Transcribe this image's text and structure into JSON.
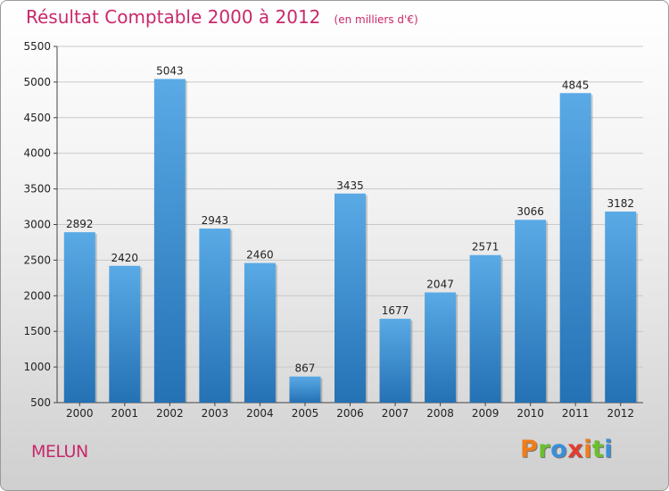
{
  "header": {
    "title": "Résultat Comptable 2000 à 2012",
    "subtitle": "(en milliers d'€)"
  },
  "footer": {
    "city": "MELUN",
    "brand": "Proxiti"
  },
  "colors": {
    "title": "#c8286a",
    "bar_light": "#5aaae6",
    "bar_dark": "#2471b4",
    "brand_letters": [
      "#ef7d1a",
      "#6abf2e",
      "#3a8fd9",
      "#e23d2f",
      "#ef7d1a",
      "#6abf2e",
      "#3a8fd9"
    ]
  },
  "chart_data": {
    "type": "bar",
    "title": "Résultat Comptable 2000 à 2012",
    "subtitle": "(en milliers d'€)",
    "xlabel": "",
    "ylabel": "",
    "categories": [
      "2000",
      "2001",
      "2002",
      "2003",
      "2004",
      "2005",
      "2006",
      "2007",
      "2008",
      "2009",
      "2010",
      "2011",
      "2012"
    ],
    "values": [
      2892,
      2420,
      5043,
      2943,
      2460,
      867,
      3435,
      1677,
      2047,
      2571,
      3066,
      4845,
      3182
    ],
    "data_labels": [
      "2892",
      "2420",
      "5043",
      "2943",
      "2460",
      "867",
      "3435",
      "1677",
      "2047",
      "2571",
      "3066",
      "4845",
      "3182"
    ],
    "ylim": [
      500,
      5500
    ],
    "yticks": [
      500,
      1000,
      1500,
      2000,
      2500,
      3000,
      3500,
      4000,
      4500,
      5000,
      5500
    ],
    "ytick_labels": [
      "500",
      "1000",
      "1500",
      "2000",
      "2500",
      "3000",
      "3500",
      "4000",
      "4500",
      "5000",
      "5500"
    ],
    "grid": true
  }
}
